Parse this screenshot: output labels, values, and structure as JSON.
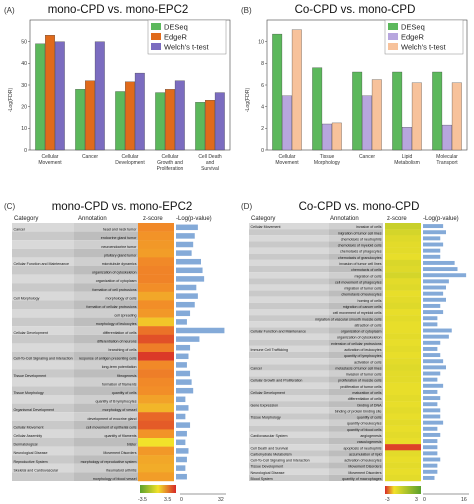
{
  "panels": {
    "A": {
      "label": "(A)",
      "title": "mono-CPD vs. mono-EPC2",
      "ylabel": "-Log(FDR)"
    },
    "B": {
      "label": "(B)",
      "title": "Co-CPD vs. mono-CPD",
      "ylabel": "-Log(FDR)"
    },
    "C": {
      "label": "(C)",
      "title": "mono-CPD vs. mono-EPC2",
      "col_category": "Category",
      "col_annotation": "Annotation",
      "col_zscore": "z-score",
      "col_logp": "-Log(p-value)",
      "colorbar": {
        "min_label": "-3.5",
        "max_label": "3.5",
        "axis_zero": "0",
        "axis_max": "32"
      }
    },
    "D": {
      "label": "(D)",
      "title": "Co-CPD vs. mono-CPD",
      "col_category": "Category",
      "col_annotation": "Annotation",
      "col_zscore": "z-score",
      "col_logp": "-Log(p-value)",
      "colorbar": {
        "min_label": "-3",
        "max_label": "3",
        "axis_zero": "0",
        "axis_max": "16"
      }
    }
  },
  "colors": {
    "deseq": "#5cb85c",
    "edger_a": "#e06a1b",
    "welch_a": "#7b6cc0",
    "edger_b": "#b7a6de",
    "welch_b": "#f7c29b",
    "heat_red": "#d62828",
    "heat_orange": "#f28c28",
    "heat_green": "#5aa02c",
    "blue_bar": "#6f9bd1"
  },
  "chart_data": [
    {
      "type": "bar",
      "panel": "A",
      "title": "mono-CPD vs. mono-EPC2",
      "ylabel": "-Log(FDR)",
      "ylim": [
        0,
        60
      ],
      "yticks": [
        0,
        10,
        20,
        30,
        40,
        50
      ],
      "categories": [
        "Cellular Movement",
        "Cancer",
        "Cellular Development",
        "Cellular Growth and Proliferation",
        "Cell Death and Survival"
      ],
      "series": [
        {
          "name": "DESeq",
          "values": [
            49,
            28,
            27,
            26.5,
            22
          ]
        },
        {
          "name": "EdgeR",
          "values": [
            53,
            32,
            31.5,
            28,
            23
          ]
        },
        {
          "name": "Welch's t-test",
          "values": [
            50,
            50,
            35.5,
            32,
            26.5
          ]
        }
      ],
      "legend": "top-right"
    },
    {
      "type": "bar",
      "panel": "B",
      "title": "Co-CPD vs. mono-CPD",
      "ylabel": "-Log(FDR)",
      "ylim": [
        0,
        12
      ],
      "yticks": [
        0,
        2,
        4,
        6,
        8,
        10
      ],
      "categories": [
        "Cellular Movement",
        "Tissue Morphology",
        "Cancer",
        "Lipid Metabolism",
        "Molecular Transport"
      ],
      "series": [
        {
          "name": "DESeq",
          "values": [
            10.7,
            7.6,
            7.2,
            7.2,
            7.2
          ]
        },
        {
          "name": "EdgeR",
          "values": [
            5.0,
            2.4,
            5.0,
            2.1,
            2.3
          ]
        },
        {
          "name": "Welch's t-test",
          "values": [
            11.1,
            2.5,
            6.5,
            6.2,
            6.2
          ]
        }
      ],
      "legend": "top-right"
    },
    {
      "type": "heatmap",
      "panel": "C",
      "title": "mono-CPD vs. mono-EPC2",
      "zscore_range": [
        -3.5,
        3.5
      ],
      "logp_range": [
        0,
        32
      ],
      "rows": [
        {
          "category": "Cancer",
          "annotation": "head and neck tumor",
          "z": 1.8,
          "logp": 14
        },
        {
          "category": "",
          "annotation": "endocrine gland tumor",
          "z": 1.6,
          "logp": 12
        },
        {
          "category": "",
          "annotation": "neuroendocrine tumor",
          "z": 1.5,
          "logp": 11
        },
        {
          "category": "",
          "annotation": "pituitary gland tumor",
          "z": 1.4,
          "logp": 10
        },
        {
          "category": "Cellular Function and Maintenance",
          "annotation": "microtubule dynamics",
          "z": 1.8,
          "logp": 16
        },
        {
          "category": "",
          "annotation": "organization of cytoskeleton",
          "z": 1.9,
          "logp": 17
        },
        {
          "category": "",
          "annotation": "organization of cytoplasm",
          "z": 1.9,
          "logp": 18
        },
        {
          "category": "",
          "annotation": "formation of cell protrusions",
          "z": 1.7,
          "logp": 13
        },
        {
          "category": "Cell Morphology",
          "annotation": "morphology of cells",
          "z": 1.2,
          "logp": 14
        },
        {
          "category": "",
          "annotation": "formation of cellular protrusions",
          "z": 1.7,
          "logp": 12
        },
        {
          "category": "",
          "annotation": "cell spreading",
          "z": 1.5,
          "logp": 9
        },
        {
          "category": "",
          "annotation": "morphology of leukocytes",
          "z": 0.6,
          "logp": 7
        },
        {
          "category": "Cellular Development",
          "annotation": "differentiation of cells",
          "z": 2.2,
          "logp": 31
        },
        {
          "category": "",
          "annotation": "differentiation of neurons",
          "z": 2.8,
          "logp": 15
        },
        {
          "category": "",
          "annotation": "branching of cells",
          "z": 2.0,
          "logp": 9
        },
        {
          "category": "Cell-To-Cell Signaling and Interaction",
          "annotation": "response of antigen presenting cells",
          "z": 3.2,
          "logp": 8
        },
        {
          "category": "",
          "annotation": "long-term potentiation",
          "z": 1.8,
          "logp": 7
        },
        {
          "category": "Tissue Development",
          "annotation": "fibrogenesis",
          "z": 2.0,
          "logp": 9
        },
        {
          "category": "",
          "annotation": "formation of filaments",
          "z": 1.8,
          "logp": 10
        },
        {
          "category": "Tissue Morphology",
          "annotation": "quantity of cells",
          "z": 1.7,
          "logp": 11
        },
        {
          "category": "",
          "annotation": "quantity of B lymphocytes",
          "z": 1.3,
          "logp": 6
        },
        {
          "category": "Organismal Development",
          "annotation": "morphology of vessel",
          "z": 0.9,
          "logp": 8
        },
        {
          "category": "",
          "annotation": "development of exocrine gland",
          "z": 2.4,
          "logp": 6
        },
        {
          "category": "Cellular Movement",
          "annotation": "cell movement of epithelial cells",
          "z": 2.6,
          "logp": 9
        },
        {
          "category": "Cellular Assembly",
          "annotation": "quantity of filaments",
          "z": 1.6,
          "logp": 7
        },
        {
          "category": "Dermatological",
          "annotation": "blister",
          "z": 0.0,
          "logp": 6
        },
        {
          "category": "Neurological Disease",
          "annotation": "Movement Disorders",
          "z": 1.5,
          "logp": 8
        },
        {
          "category": "Reproductive System",
          "annotation": "morphology of reproductive system",
          "z": 1.2,
          "logp": 7
        },
        {
          "category": "Skeletal and Cardiovascular",
          "annotation": "rheumatoid arthritis",
          "z": 1.1,
          "logp": 6
        },
        {
          "category": "",
          "annotation": "morphology of blood vessel",
          "z": 1.4,
          "logp": 7
        }
      ]
    },
    {
      "type": "heatmap",
      "panel": "D",
      "title": "Co-CPD vs. mono-CPD",
      "zscore_range": [
        -3,
        3
      ],
      "logp_range": [
        0,
        16
      ],
      "rows": [
        {
          "category": "Cellular Movement",
          "annotation": "invasion of cells",
          "z": 0.8,
          "logp": 7
        },
        {
          "category": "",
          "annotation": "migration of tumor cell lines",
          "z": 0.6,
          "logp": 8
        },
        {
          "category": "",
          "annotation": "chemotaxis of neutrophils",
          "z": 0.4,
          "logp": 6
        },
        {
          "category": "",
          "annotation": "chemotaxis of myeloid cells",
          "z": 0.3,
          "logp": 7
        },
        {
          "category": "",
          "annotation": "chemotaxis of phagocytes",
          "z": 0.3,
          "logp": 6
        },
        {
          "category": "",
          "annotation": "chemotaxis of granulocytes",
          "z": 0.2,
          "logp": 6
        },
        {
          "category": "",
          "annotation": "invasion of tumor cell lines",
          "z": 0.5,
          "logp": 11
        },
        {
          "category": "",
          "annotation": "chemotaxis of cells",
          "z": 0.4,
          "logp": 12
        },
        {
          "category": "",
          "annotation": "migration of cells",
          "z": 0.6,
          "logp": 15
        },
        {
          "category": "",
          "annotation": "cell movement of phagocytes",
          "z": 0.3,
          "logp": 9
        },
        {
          "category": "",
          "annotation": "migration of tumor cells",
          "z": 0.4,
          "logp": 8
        },
        {
          "category": "",
          "annotation": "chemotaxis of leukocytes",
          "z": 0.2,
          "logp": 7
        },
        {
          "category": "",
          "annotation": "homing of cells",
          "z": 0.3,
          "logp": 8
        },
        {
          "category": "",
          "annotation": "migration of cancer cells",
          "z": 0.4,
          "logp": 6
        },
        {
          "category": "",
          "annotation": "cell movement of myeloid cells",
          "z": 0.2,
          "logp": 7
        },
        {
          "category": "",
          "annotation": "migration of vascular smooth muscle cells",
          "z": 0.3,
          "logp": 5
        },
        {
          "category": "",
          "annotation": "attraction of cells",
          "z": 0.2,
          "logp": 5
        },
        {
          "category": "Cellular Function and Maintenance",
          "annotation": "organization of cytoplasm",
          "z": 0.2,
          "logp": 10
        },
        {
          "category": "",
          "annotation": "organization of cytoskeleton",
          "z": 0.3,
          "logp": 9
        },
        {
          "category": "",
          "annotation": "extension of cellular protrusions",
          "z": 0.2,
          "logp": 6
        },
        {
          "category": "Immune Cell Trafficking",
          "annotation": "activation of leukocytes",
          "z": 0.3,
          "logp": 5
        },
        {
          "category": "",
          "annotation": "quantity of lymphocytes",
          "z": 0.2,
          "logp": 6
        },
        {
          "category": "",
          "annotation": "activation of cells",
          "z": 0.3,
          "logp": 7
        },
        {
          "category": "Cancer",
          "annotation": "metastasis of tumor cell lines",
          "z": 0.4,
          "logp": 8
        },
        {
          "category": "",
          "annotation": "invasion of tumor cells",
          "z": 0.3,
          "logp": 6
        },
        {
          "category": "Cellular Growth and Proliferation",
          "annotation": "proliferation of muscle cells",
          "z": 0.3,
          "logp": 5
        },
        {
          "category": "",
          "annotation": "proliferation of tumor cells",
          "z": 0.2,
          "logp": 7
        },
        {
          "category": "Cellular Development",
          "annotation": "maturation of cells",
          "z": 0.2,
          "logp": 5
        },
        {
          "category": "",
          "annotation": "differentiation of cells",
          "z": 0.3,
          "logp": 6
        },
        {
          "category": "Gene Expression",
          "annotation": "binding of DNA",
          "z": 0.2,
          "logp": 5
        },
        {
          "category": "",
          "annotation": "binding of protein binding site",
          "z": 0.3,
          "logp": 6
        },
        {
          "category": "Tissue Morphology",
          "annotation": "quantity of cells",
          "z": 0.2,
          "logp": 6
        },
        {
          "category": "",
          "annotation": "quantity of leukocytes",
          "z": 0.3,
          "logp": 7
        },
        {
          "category": "",
          "annotation": "quantity of blood cells",
          "z": 0.2,
          "logp": 5
        },
        {
          "category": "Cardiovascular System",
          "annotation": "angiogenesis",
          "z": 0.3,
          "logp": 6
        },
        {
          "category": "",
          "annotation": "vasculogenesis",
          "z": 0.2,
          "logp": 5
        },
        {
          "category": "Cell Death and Survival",
          "annotation": "apoptosis of neutrophils",
          "z": -2.6,
          "logp": 5
        },
        {
          "category": "Carbohydrate Metabolism",
          "annotation": "accumulation of lipid",
          "z": 0.3,
          "logp": 5
        },
        {
          "category": "Cell-To-Cell Signaling and Interaction",
          "annotation": "activation of leukocytes",
          "z": 0.2,
          "logp": 6
        },
        {
          "category": "Tissue Development",
          "annotation": "Movement Disorders",
          "z": 0.3,
          "logp": 5
        },
        {
          "category": "Neurological Disease",
          "annotation": "Movement Disorders",
          "z": 0.2,
          "logp": 5
        },
        {
          "category": "Blood System",
          "annotation": "quantity of macrophages",
          "z": 0.3,
          "logp": 4
        }
      ]
    }
  ]
}
